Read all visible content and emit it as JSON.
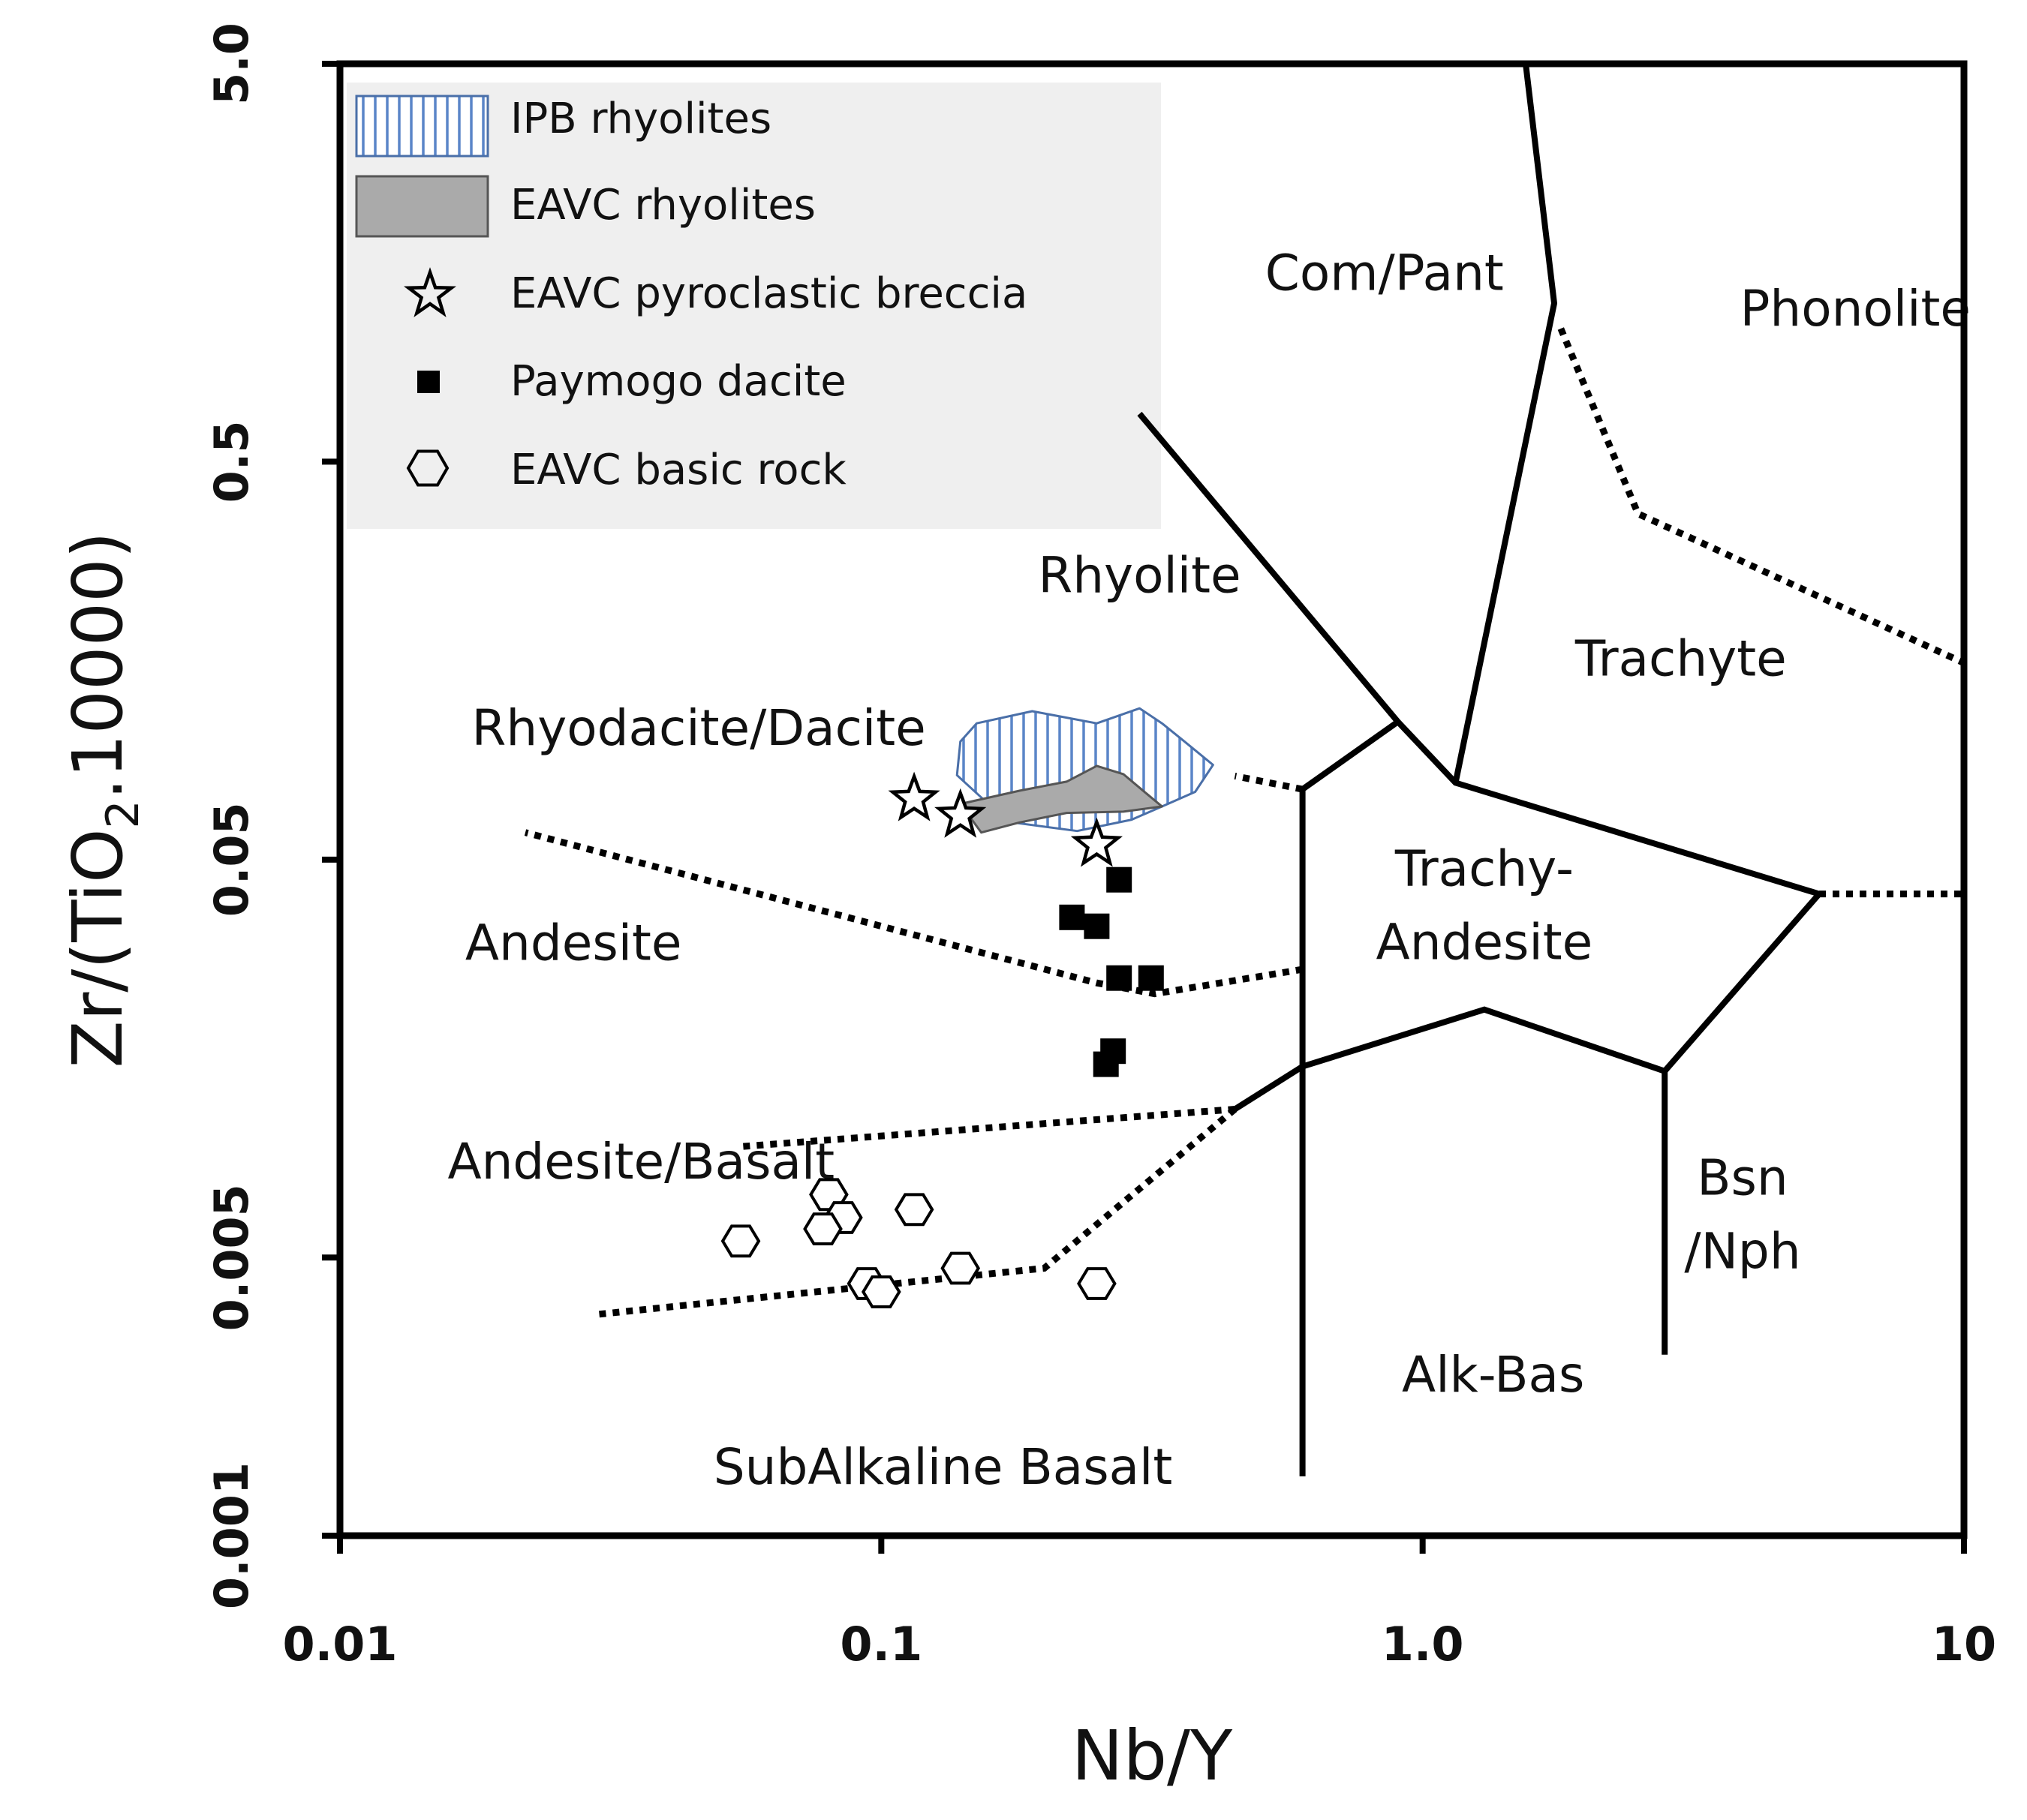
{
  "chart_data": {
    "type": "scatter",
    "title": "",
    "xlabel": "Nb/Y",
    "ylabel_parts": [
      "Zr/(TiO",
      "2",
      ".10000)"
    ],
    "x_scale": "log",
    "y_scale": "log",
    "xlim": [
      0.01,
      10
    ],
    "ylim": [
      0.001,
      5.0
    ],
    "x_ticks": [
      {
        "value": 0.01,
        "label": "0.01"
      },
      {
        "value": 0.1,
        "label": "0.1"
      },
      {
        "value": 1.0,
        "label": "1.0"
      },
      {
        "value": 10,
        "label": "10"
      }
    ],
    "y_ticks": [
      {
        "value": 0.001,
        "label": "0.001"
      },
      {
        "value": 0.005,
        "label": "0.005"
      },
      {
        "value": 0.05,
        "label": "0.05"
      },
      {
        "value": 0.5,
        "label": "0.5"
      },
      {
        "value": 5.0,
        "label": "5.0"
      }
    ],
    "legend": {
      "position": "top-left",
      "entries": [
        {
          "label": "IPB rhyolites",
          "symbol": "vertical-hatch-area"
        },
        {
          "label": "EAVC rhyolites",
          "symbol": "grey-area"
        },
        {
          "label": "EAVC pyroclastic breccia",
          "symbol": "star"
        },
        {
          "label": "Paymogo dacite",
          "symbol": "filled-square"
        },
        {
          "label": "EAVC basic rock",
          "symbol": "open-hexagon"
        }
      ]
    },
    "fields": [
      {
        "lines": [
          "Com/Pant"
        ],
        "x": 0.85,
        "y": 1.35
      },
      {
        "lines": [
          "Phonolite"
        ],
        "x": 6.3,
        "y": 1.1
      },
      {
        "lines": [
          "Rhyolite"
        ],
        "x": 0.3,
        "y": 0.235
      },
      {
        "lines": [
          "Trachyte"
        ],
        "x": 3.0,
        "y": 0.145
      },
      {
        "lines": [
          "Rhyodacite/Dacite"
        ],
        "x": 0.046,
        "y": 0.097
      },
      {
        "lines": [
          "Trachy-",
          "Andesite"
        ],
        "x": 1.3,
        "y": 0.043
      },
      {
        "lines": [
          "Andesite"
        ],
        "x": 0.027,
        "y": 0.028
      },
      {
        "lines": [
          "Bsn",
          "/Nph"
        ],
        "x": 3.9,
        "y": 0.0072
      },
      {
        "lines": [
          "Andesite/Basalt"
        ],
        "x": 0.036,
        "y": 0.0079
      },
      {
        "lines": [
          "Alk-Bas"
        ],
        "x": 1.35,
        "y": 0.0023
      },
      {
        "lines": [
          "SubAlkaline Basalt"
        ],
        "x": 0.13,
        "y": 0.00135
      }
    ],
    "boundaries": [
      {
        "style": "solid",
        "points": [
          [
            0.3,
            0.66
          ],
          [
            0.9,
            0.111
          ],
          [
            1.15,
            0.078
          ],
          [
            5.4,
            0.041
          ],
          [
            2.8,
            0.0147
          ],
          [
            1.3,
            0.021
          ],
          [
            0.6,
            0.0151
          ],
          [
            0.45,
            0.0118
          ]
        ]
      },
      {
        "style": "solid",
        "points": [
          [
            0.9,
            0.111
          ],
          [
            0.6,
            0.0751
          ],
          [
            0.6,
            0.00141
          ]
        ]
      },
      {
        "style": "solid",
        "points": [
          [
            1.15,
            0.078
          ],
          [
            1.75,
            1.25
          ],
          [
            1.55,
            5.0
          ]
        ]
      },
      {
        "style": "solid",
        "points": [
          [
            2.8,
            0.0147
          ],
          [
            2.8,
            0.00285
          ]
        ]
      },
      {
        "style": "dotted",
        "points": [
          [
            0.6,
            0.0751
          ],
          [
            0.45,
            0.0811
          ]
        ]
      },
      {
        "style": "dotted",
        "points": [
          [
            0.6,
            0.0265
          ],
          [
            0.32,
            0.023
          ],
          [
            0.25,
            0.0245
          ],
          [
            0.022,
            0.0585
          ]
        ]
      },
      {
        "style": "dotted",
        "points": [
          [
            0.45,
            0.0118
          ],
          [
            0.055,
            0.0095
          ]
        ]
      },
      {
        "style": "dotted",
        "points": [
          [
            0.45,
            0.0118
          ],
          [
            0.2,
            0.0047
          ],
          [
            0.03,
            0.0036
          ]
        ]
      },
      {
        "style": "dotted",
        "points": [
          [
            1.8,
            1.08
          ],
          [
            2.5,
            0.37
          ],
          [
            10,
            0.156
          ]
        ]
      },
      {
        "style": "dotted",
        "points": [
          [
            5.4,
            0.041
          ],
          [
            10,
            0.041
          ]
        ]
      }
    ],
    "areas": [
      {
        "name": "IPB rhyolites",
        "fill": "hatch",
        "points": [
          [
            0.15,
            0.11
          ],
          [
            0.19,
            0.118
          ],
          [
            0.25,
            0.11
          ],
          [
            0.3,
            0.12
          ],
          [
            0.33,
            0.11
          ],
          [
            0.36,
            0.1
          ],
          [
            0.41,
            0.0865
          ],
          [
            0.38,
            0.074
          ],
          [
            0.33,
            0.068
          ],
          [
            0.29,
            0.063
          ],
          [
            0.23,
            0.059
          ],
          [
            0.175,
            0.062
          ],
          [
            0.155,
            0.0705
          ],
          [
            0.138,
            0.0815
          ],
          [
            0.14,
            0.099
          ]
        ]
      },
      {
        "name": "EAVC rhyolites",
        "fill": "grey",
        "points": [
          [
            0.14,
            0.069
          ],
          [
            0.18,
            0.0745
          ],
          [
            0.22,
            0.0785
          ],
          [
            0.25,
            0.086
          ],
          [
            0.28,
            0.082
          ],
          [
            0.31,
            0.073
          ],
          [
            0.33,
            0.068
          ],
          [
            0.28,
            0.066
          ],
          [
            0.22,
            0.0655
          ],
          [
            0.18,
            0.062
          ],
          [
            0.153,
            0.0585
          ]
        ]
      }
    ],
    "series": [
      {
        "name": "EAVC pyroclastic breccia",
        "marker": "star",
        "points": [
          [
            0.115,
            0.071
          ],
          [
            0.14,
            0.0645
          ],
          [
            0.25,
            0.0545
          ]
        ]
      },
      {
        "name": "Paymogo dacite",
        "marker": "square",
        "points": [
          [
            0.275,
            0.0445
          ],
          [
            0.225,
            0.0358
          ],
          [
            0.25,
            0.034
          ],
          [
            0.275,
            0.0252
          ],
          [
            0.315,
            0.0252
          ],
          [
            0.268,
            0.0165
          ],
          [
            0.26,
            0.0153
          ]
        ]
      },
      {
        "name": "EAVC basic rock",
        "marker": "hexagon",
        "points": [
          [
            0.08,
            0.0072
          ],
          [
            0.085,
            0.0063
          ],
          [
            0.078,
            0.0059
          ],
          [
            0.115,
            0.0066
          ],
          [
            0.055,
            0.0055
          ],
          [
            0.094,
            0.0043
          ],
          [
            0.1,
            0.0041
          ],
          [
            0.14,
            0.0047
          ],
          [
            0.25,
            0.0043
          ]
        ]
      }
    ]
  },
  "colors": {
    "axis": "#000000",
    "legend_bg": "#efefef",
    "hatch_stroke": "#5a85c8",
    "hatch_outline": "#4a6fa8",
    "grey_fill": "#aaaaaa",
    "grey_outline": "#555555"
  }
}
